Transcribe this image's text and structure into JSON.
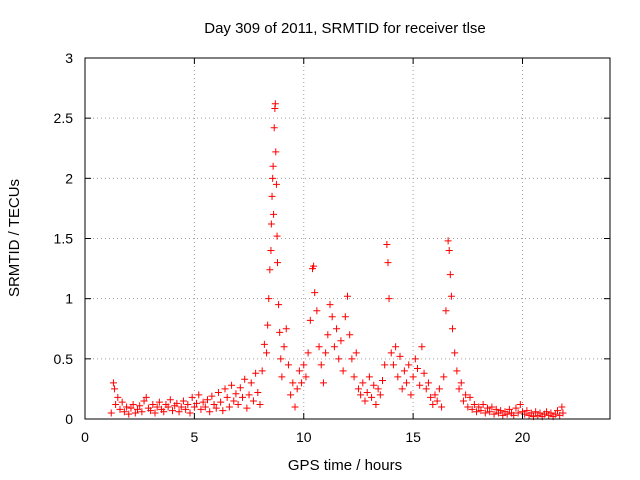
{
  "chart_data": {
    "type": "scatter",
    "title": "Day 309 of 2011, SRMTID for receiver tlse",
    "xlabel": "GPS time / hours",
    "ylabel": "SRMTID / TECUs",
    "xlim": [
      0,
      24
    ],
    "ylim": [
      0,
      3
    ],
    "x_ticks": [
      0,
      5,
      10,
      15,
      20
    ],
    "y_ticks": [
      0,
      0.5,
      1,
      1.5,
      2,
      2.5,
      3
    ],
    "x_tick_labels": [
      "0",
      "5",
      "10",
      "15",
      "20"
    ],
    "y_tick_labels": [
      "0",
      "0.5",
      "1",
      "1.5",
      "2",
      "2.5",
      "3"
    ],
    "grid": true,
    "marker": "+",
    "color": "#ff0000",
    "series": [
      {
        "name": "SRMTID",
        "points": [
          [
            1.2,
            0.05
          ],
          [
            1.3,
            0.3
          ],
          [
            1.35,
            0.25
          ],
          [
            1.4,
            0.12
          ],
          [
            1.5,
            0.18
          ],
          [
            1.6,
            0.08
          ],
          [
            1.7,
            0.14
          ],
          [
            1.8,
            0.06
          ],
          [
            1.9,
            0.1
          ],
          [
            2.0,
            0.04
          ],
          [
            2.1,
            0.09
          ],
          [
            2.2,
            0.12
          ],
          [
            2.3,
            0.05
          ],
          [
            2.4,
            0.08
          ],
          [
            2.5,
            0.11
          ],
          [
            2.6,
            0.06
          ],
          [
            2.7,
            0.15
          ],
          [
            2.8,
            0.18
          ],
          [
            2.9,
            0.09
          ],
          [
            3.0,
            0.07
          ],
          [
            3.1,
            0.12
          ],
          [
            3.2,
            0.05
          ],
          [
            3.3,
            0.1
          ],
          [
            3.4,
            0.14
          ],
          [
            3.5,
            0.08
          ],
          [
            3.6,
            0.06
          ],
          [
            3.7,
            0.12
          ],
          [
            3.8,
            0.1
          ],
          [
            3.9,
            0.16
          ],
          [
            4.0,
            0.07
          ],
          [
            4.1,
            0.11
          ],
          [
            4.2,
            0.13
          ],
          [
            4.3,
            0.06
          ],
          [
            4.4,
            0.1
          ],
          [
            4.5,
            0.15
          ],
          [
            4.6,
            0.08
          ],
          [
            4.7,
            0.12
          ],
          [
            4.8,
            0.05
          ],
          [
            4.9,
            0.18
          ],
          [
            5.0,
            0.1
          ],
          [
            5.1,
            0.13
          ],
          [
            5.2,
            0.2
          ],
          [
            5.3,
            0.08
          ],
          [
            5.4,
            0.14
          ],
          [
            5.5,
            0.1
          ],
          [
            5.6,
            0.16
          ],
          [
            5.7,
            0.06
          ],
          [
            5.8,
            0.19
          ],
          [
            5.9,
            0.12
          ],
          [
            6.0,
            0.09
          ],
          [
            6.1,
            0.22
          ],
          [
            6.2,
            0.14
          ],
          [
            6.3,
            0.07
          ],
          [
            6.4,
            0.25
          ],
          [
            6.5,
            0.18
          ],
          [
            6.6,
            0.1
          ],
          [
            6.7,
            0.28
          ],
          [
            6.8,
            0.15
          ],
          [
            6.9,
            0.21
          ],
          [
            7.0,
            0.12
          ],
          [
            7.1,
            0.26
          ],
          [
            7.2,
            0.18
          ],
          [
            7.3,
            0.33
          ],
          [
            7.4,
            0.09
          ],
          [
            7.5,
            0.2
          ],
          [
            7.6,
            0.3
          ],
          [
            7.7,
            0.15
          ],
          [
            7.8,
            0.38
          ],
          [
            7.9,
            0.22
          ],
          [
            8.0,
            0.12
          ],
          [
            8.1,
            0.4
          ],
          [
            8.2,
            0.62
          ],
          [
            8.3,
            0.55
          ],
          [
            8.35,
            0.78
          ],
          [
            8.4,
            1.0
          ],
          [
            8.45,
            1.24
          ],
          [
            8.5,
            1.4
          ],
          [
            8.52,
            1.62
          ],
          [
            8.55,
            1.85
          ],
          [
            8.58,
            2.0
          ],
          [
            8.6,
            2.1
          ],
          [
            8.62,
            1.7
          ],
          [
            8.65,
            2.42
          ],
          [
            8.68,
            2.58
          ],
          [
            8.7,
            2.62
          ],
          [
            8.72,
            2.22
          ],
          [
            8.75,
            1.95
          ],
          [
            8.78,
            1.52
          ],
          [
            8.8,
            1.3
          ],
          [
            8.85,
            0.95
          ],
          [
            8.9,
            0.72
          ],
          [
            8.95,
            0.5
          ],
          [
            9.0,
            0.35
          ],
          [
            9.1,
            0.6
          ],
          [
            9.2,
            0.75
          ],
          [
            9.3,
            0.45
          ],
          [
            9.4,
            0.2
          ],
          [
            9.5,
            0.3
          ],
          [
            9.6,
            0.1
          ],
          [
            9.7,
            0.25
          ],
          [
            9.8,
            0.4
          ],
          [
            9.9,
            0.3
          ],
          [
            10.0,
            0.45
          ],
          [
            10.1,
            0.35
          ],
          [
            10.2,
            0.55
          ],
          [
            10.3,
            0.82
          ],
          [
            10.4,
            1.25
          ],
          [
            10.45,
            1.27
          ],
          [
            10.5,
            1.05
          ],
          [
            10.6,
            0.9
          ],
          [
            10.7,
            0.6
          ],
          [
            10.8,
            0.45
          ],
          [
            10.9,
            0.3
          ],
          [
            11.0,
            0.55
          ],
          [
            11.1,
            0.7
          ],
          [
            11.2,
            0.95
          ],
          [
            11.3,
            0.85
          ],
          [
            11.4,
            0.6
          ],
          [
            11.5,
            0.75
          ],
          [
            11.6,
            0.5
          ],
          [
            11.7,
            0.65
          ],
          [
            11.8,
            0.4
          ],
          [
            11.9,
            0.85
          ],
          [
            12.0,
            1.02
          ],
          [
            12.1,
            0.7
          ],
          [
            12.2,
            0.5
          ],
          [
            12.3,
            0.35
          ],
          [
            12.4,
            0.55
          ],
          [
            12.5,
            0.25
          ],
          [
            12.6,
            0.2
          ],
          [
            12.7,
            0.3
          ],
          [
            12.8,
            0.15
          ],
          [
            12.9,
            0.22
          ],
          [
            13.0,
            0.35
          ],
          [
            13.1,
            0.18
          ],
          [
            13.2,
            0.28
          ],
          [
            13.3,
            0.12
          ],
          [
            13.4,
            0.25
          ],
          [
            13.5,
            0.2
          ],
          [
            13.6,
            0.32
          ],
          [
            13.7,
            0.45
          ],
          [
            13.8,
            1.45
          ],
          [
            13.85,
            1.3
          ],
          [
            13.9,
            1.0
          ],
          [
            14.0,
            0.55
          ],
          [
            14.1,
            0.45
          ],
          [
            14.2,
            0.6
          ],
          [
            14.3,
            0.35
          ],
          [
            14.4,
            0.52
          ],
          [
            14.5,
            0.25
          ],
          [
            14.6,
            0.4
          ],
          [
            14.7,
            0.3
          ],
          [
            14.8,
            0.45
          ],
          [
            14.9,
            0.2
          ],
          [
            15.0,
            0.35
          ],
          [
            15.1,
            0.5
          ],
          [
            15.2,
            0.42
          ],
          [
            15.3,
            0.28
          ],
          [
            15.4,
            0.6
          ],
          [
            15.5,
            0.38
          ],
          [
            15.6,
            0.25
          ],
          [
            15.7,
            0.3
          ],
          [
            15.8,
            0.18
          ],
          [
            15.9,
            0.12
          ],
          [
            16.0,
            0.2
          ],
          [
            16.1,
            0.15
          ],
          [
            16.2,
            0.25
          ],
          [
            16.3,
            0.1
          ],
          [
            16.4,
            0.35
          ],
          [
            16.5,
            0.9
          ],
          [
            16.6,
            1.48
          ],
          [
            16.65,
            1.4
          ],
          [
            16.7,
            1.2
          ],
          [
            16.75,
            1.02
          ],
          [
            16.8,
            0.75
          ],
          [
            16.9,
            0.55
          ],
          [
            17.0,
            0.4
          ],
          [
            17.1,
            0.25
          ],
          [
            17.2,
            0.3
          ],
          [
            17.3,
            0.15
          ],
          [
            17.4,
            0.2
          ],
          [
            17.5,
            0.1
          ],
          [
            17.6,
            0.18
          ],
          [
            17.7,
            0.08
          ],
          [
            17.8,
            0.12
          ],
          [
            17.9,
            0.06
          ],
          [
            18.0,
            0.1
          ],
          [
            18.1,
            0.07
          ],
          [
            18.2,
            0.12
          ],
          [
            18.3,
            0.05
          ],
          [
            18.4,
            0.09
          ],
          [
            18.5,
            0.06
          ],
          [
            18.6,
            0.1
          ],
          [
            18.7,
            0.04
          ],
          [
            18.8,
            0.08
          ],
          [
            18.9,
            0.05
          ],
          [
            19.0,
            0.07
          ],
          [
            19.1,
            0.03
          ],
          [
            19.2,
            0.06
          ],
          [
            19.3,
            0.04
          ],
          [
            19.4,
            0.08
          ],
          [
            19.5,
            0.05
          ],
          [
            19.6,
            0.03
          ],
          [
            19.7,
            0.09
          ],
          [
            19.8,
            0.05
          ],
          [
            19.9,
            0.12
          ],
          [
            20.0,
            0.06
          ],
          [
            20.1,
            0.04
          ],
          [
            20.2,
            0.07
          ],
          [
            20.3,
            0.03
          ],
          [
            20.4,
            0.05
          ],
          [
            20.5,
            0.02
          ],
          [
            20.6,
            0.06
          ],
          [
            20.7,
            0.03
          ],
          [
            20.8,
            0.05
          ],
          [
            20.9,
            0.02
          ],
          [
            21.0,
            0.04
          ],
          [
            21.1,
            0.06
          ],
          [
            21.2,
            0.03
          ],
          [
            21.3,
            0.05
          ],
          [
            21.4,
            0.02
          ],
          [
            21.5,
            0.04
          ],
          [
            21.6,
            0.07
          ],
          [
            21.7,
            0.03
          ],
          [
            21.8,
            0.1
          ],
          [
            21.85,
            0.05
          ]
        ]
      }
    ]
  }
}
